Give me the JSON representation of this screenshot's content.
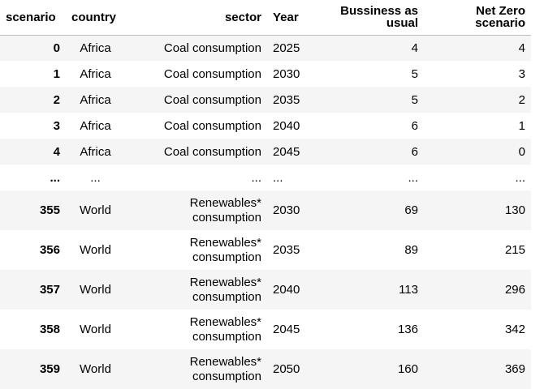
{
  "columns": [
    "scenario",
    "country",
    "sector",
    "Year",
    "Bussiness as usual",
    "Net Zero scenario"
  ],
  "header_lines": {
    "bau": [
      "Bussiness as",
      "usual"
    ],
    "nz": [
      "Net Zero",
      "scenario"
    ]
  },
  "rows": [
    {
      "index": "0",
      "country": "Africa",
      "sector_lines": [
        "Coal consumption"
      ],
      "year": "2025",
      "bau": "4",
      "nz": "4"
    },
    {
      "index": "1",
      "country": "Africa",
      "sector_lines": [
        "Coal consumption"
      ],
      "year": "2030",
      "bau": "5",
      "nz": "3"
    },
    {
      "index": "2",
      "country": "Africa",
      "sector_lines": [
        "Coal consumption"
      ],
      "year": "2035",
      "bau": "5",
      "nz": "2"
    },
    {
      "index": "3",
      "country": "Africa",
      "sector_lines": [
        "Coal consumption"
      ],
      "year": "2040",
      "bau": "6",
      "nz": "1"
    },
    {
      "index": "4",
      "country": "Africa",
      "sector_lines": [
        "Coal consumption"
      ],
      "year": "2045",
      "bau": "6",
      "nz": "0"
    },
    {
      "index": "...",
      "country": "...",
      "sector_lines": [
        "..."
      ],
      "year": "...",
      "bau": "...",
      "nz": "..."
    },
    {
      "index": "355",
      "country": "World",
      "sector_lines": [
        "Renewables*",
        "consumption"
      ],
      "year": "2030",
      "bau": "69",
      "nz": "130"
    },
    {
      "index": "356",
      "country": "World",
      "sector_lines": [
        "Renewables*",
        "consumption"
      ],
      "year": "2035",
      "bau": "89",
      "nz": "215"
    },
    {
      "index": "357",
      "country": "World",
      "sector_lines": [
        "Renewables*",
        "consumption"
      ],
      "year": "2040",
      "bau": "113",
      "nz": "296"
    },
    {
      "index": "358",
      "country": "World",
      "sector_lines": [
        "Renewables*",
        "consumption"
      ],
      "year": "2045",
      "bau": "136",
      "nz": "342"
    },
    {
      "index": "359",
      "country": "World",
      "sector_lines": [
        "Renewables*",
        "consumption"
      ],
      "year": "2050",
      "bau": "160",
      "nz": "369"
    }
  ],
  "colors": {
    "stripe": "#f5f5f5",
    "header_rule": "#bdbdbd",
    "text": "#000000"
  }
}
